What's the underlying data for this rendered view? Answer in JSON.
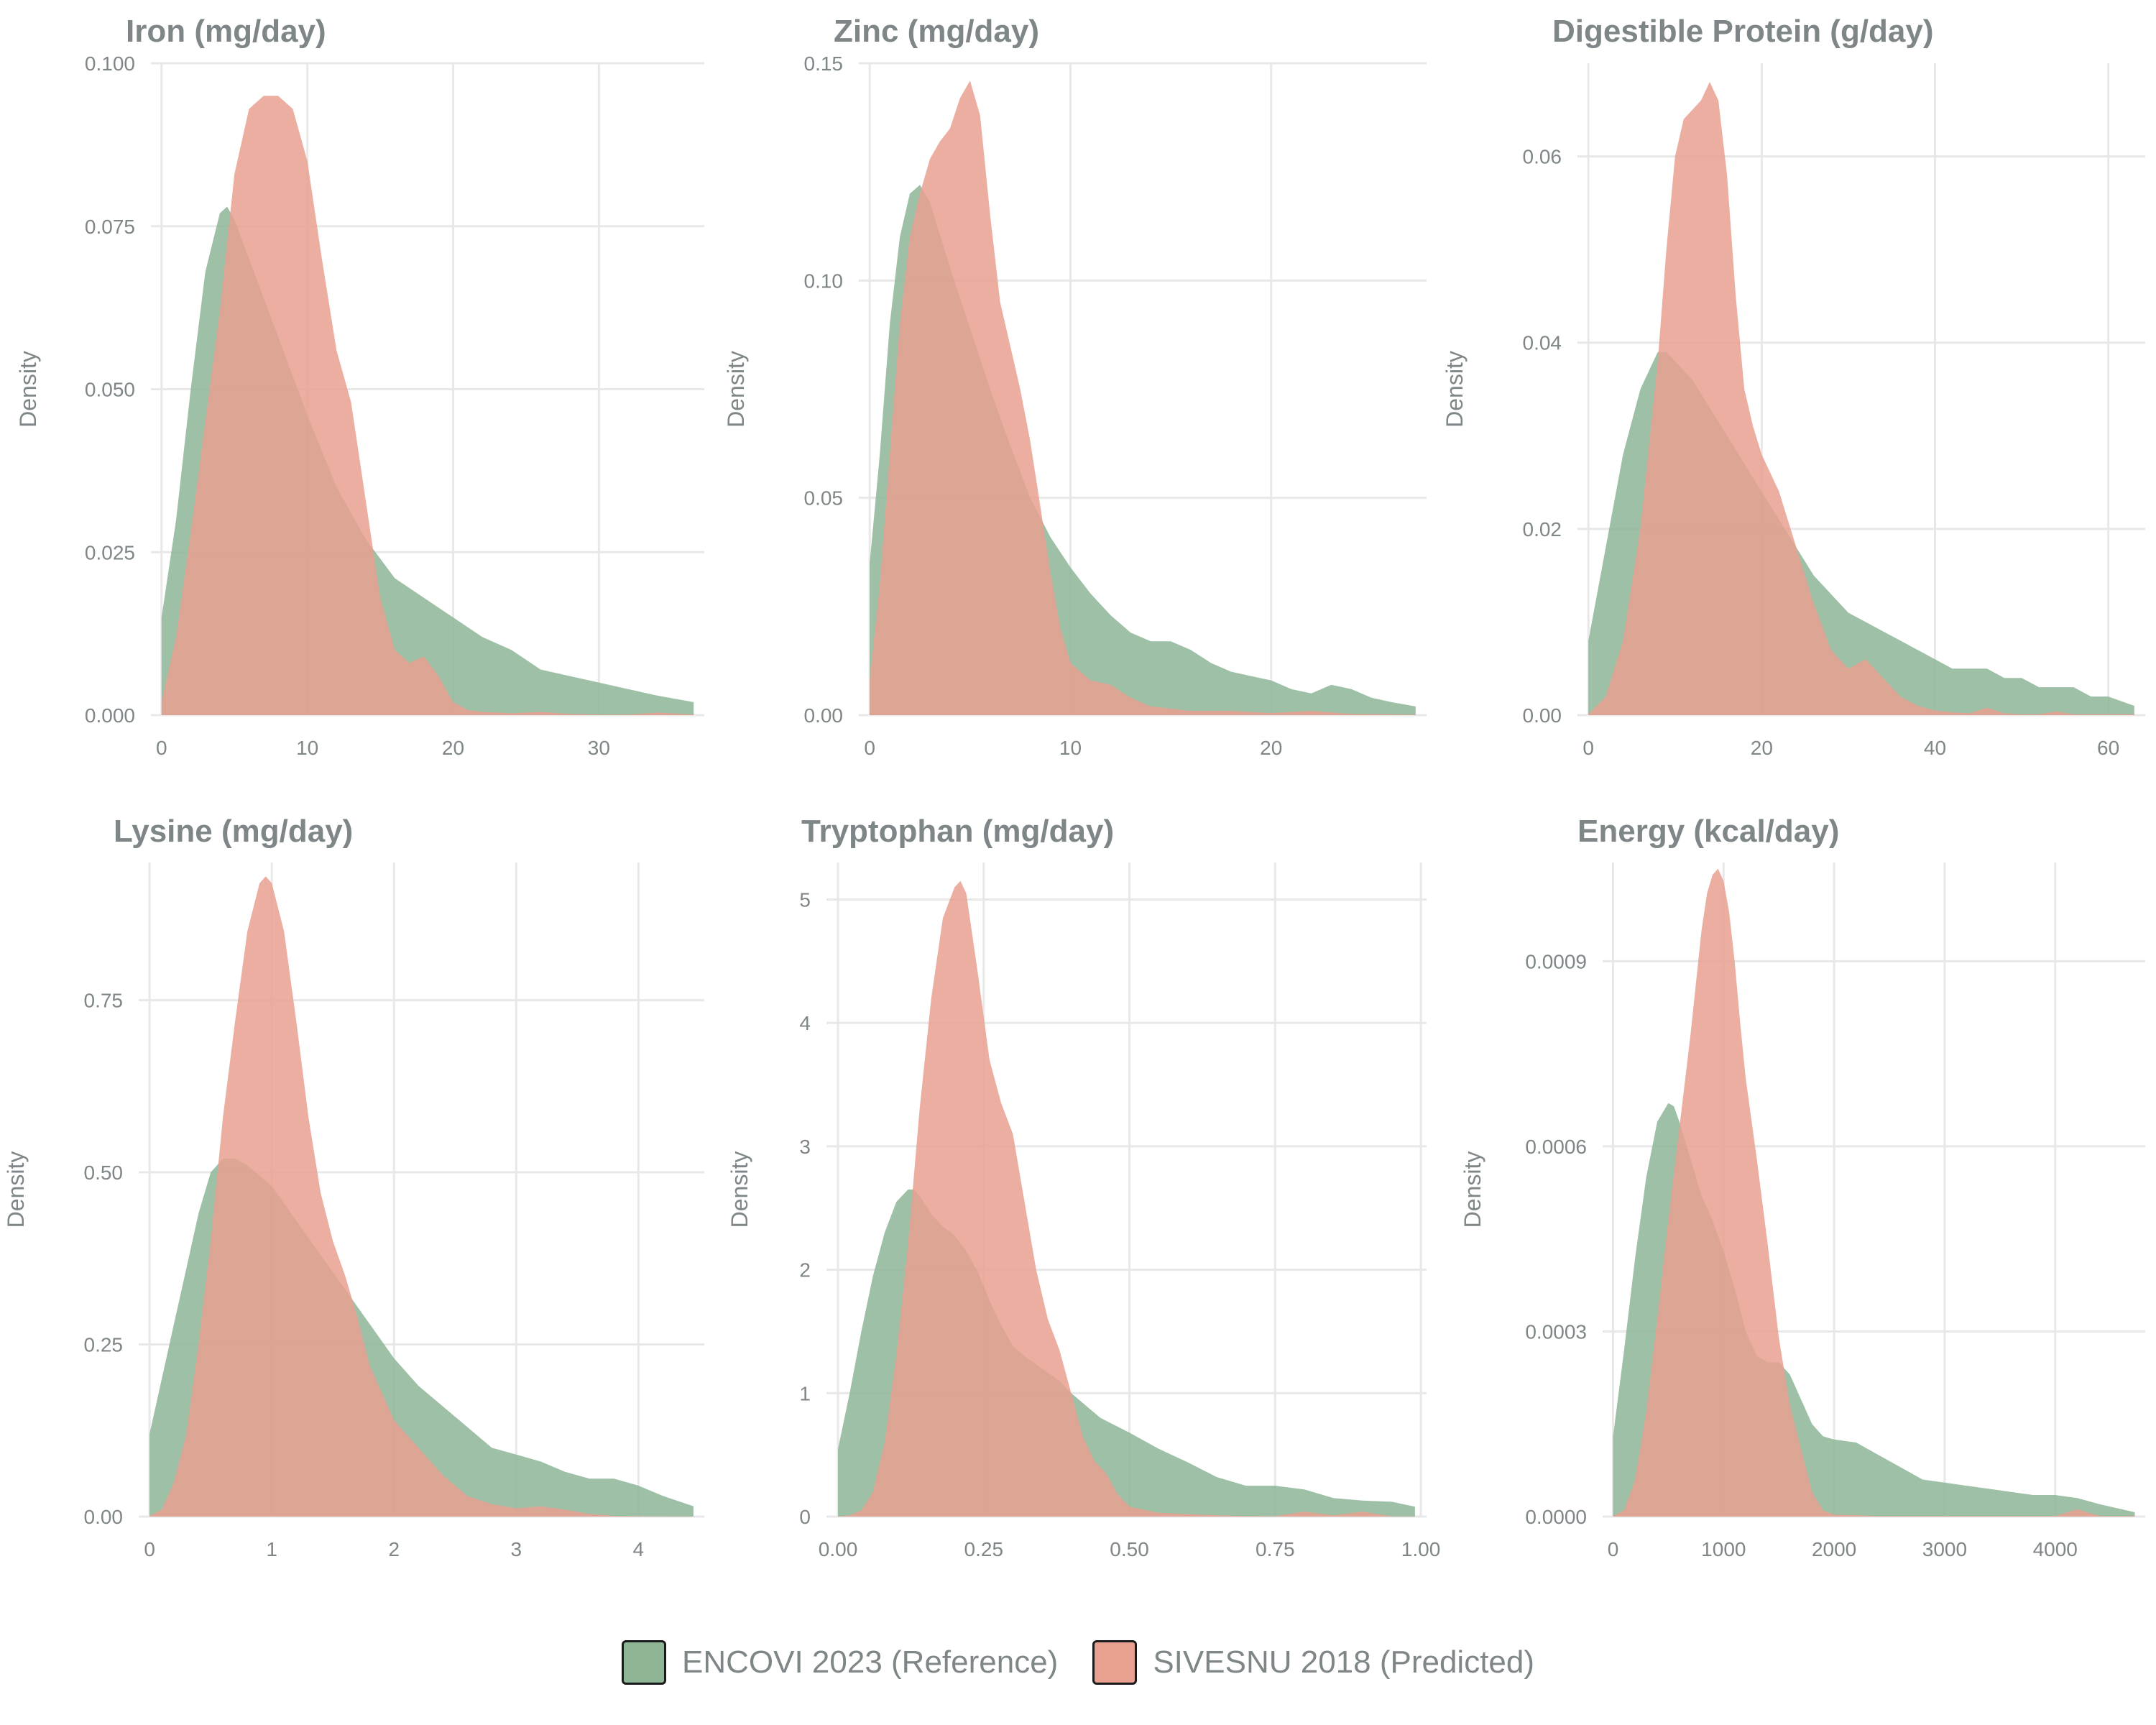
{
  "legend": {
    "items": [
      {
        "label": "ENCOVI 2023 (Reference)",
        "color": "#8db596"
      },
      {
        "label": "SIVESNU 2018 (Predicted)",
        "color": "#e8a090"
      }
    ]
  },
  "chart_data": [
    {
      "type": "area",
      "title": "Iron (mg/day)",
      "xlabel": "",
      "ylabel": "Density",
      "xlim": [
        0,
        36.5
      ],
      "ylim": [
        0,
        0.1
      ],
      "xticks": [
        0,
        10,
        20,
        30
      ],
      "xtick_labels": [
        "0",
        "10",
        "20",
        "30"
      ],
      "yticks": [
        0,
        0.025,
        0.05,
        0.075,
        0.1
      ],
      "ytick_labels": [
        "0.000",
        "0.025",
        "0.050",
        "0.075",
        "0.100"
      ],
      "series": [
        {
          "name": "ENCOVI 2023 (Reference)",
          "color": "#8db596",
          "x": [
            0,
            1,
            2,
            3,
            4,
            4.5,
            5,
            6,
            8,
            10,
            12,
            14,
            15,
            16,
            18,
            20,
            22,
            24,
            26,
            28,
            30,
            32,
            34,
            36.5
          ],
          "y": [
            0.015,
            0.03,
            0.05,
            0.068,
            0.077,
            0.078,
            0.076,
            0.07,
            0.058,
            0.046,
            0.035,
            0.027,
            0.024,
            0.021,
            0.018,
            0.015,
            0.012,
            0.01,
            0.007,
            0.006,
            0.005,
            0.004,
            0.003,
            0.002
          ]
        },
        {
          "name": "SIVESNU 2018 (Predicted)",
          "color": "#e8a090",
          "x": [
            0,
            1,
            2,
            3,
            4,
            5,
            6,
            7,
            8,
            9,
            10,
            11,
            12,
            13,
            14,
            15,
            16,
            17,
            18,
            19,
            20,
            21,
            22,
            24,
            26,
            28,
            30,
            32,
            34,
            36.5
          ],
          "y": [
            0.002,
            0.012,
            0.028,
            0.045,
            0.062,
            0.083,
            0.093,
            0.095,
            0.095,
            0.093,
            0.085,
            0.07,
            0.056,
            0.048,
            0.033,
            0.018,
            0.01,
            0.008,
            0.009,
            0.006,
            0.002,
            0.0008,
            0.0005,
            0.0003,
            0.0005,
            0.0002,
            0.0001,
            0.0001,
            0.0004,
            0.0001
          ]
        }
      ]
    },
    {
      "type": "area",
      "title": "Zinc (mg/day)",
      "xlabel": "",
      "ylabel": "Density",
      "xlim": [
        0,
        27.2
      ],
      "ylim": [
        0,
        0.15
      ],
      "xticks": [
        0,
        10,
        20
      ],
      "xtick_labels": [
        "0",
        "10",
        "20"
      ],
      "yticks": [
        0,
        0.05,
        0.1,
        0.15
      ],
      "ytick_labels": [
        "0.00",
        "0.05",
        "0.10",
        "0.15"
      ],
      "series": [
        {
          "name": "ENCOVI 2023 (Reference)",
          "color": "#8db596",
          "x": [
            0,
            0.5,
            1,
            1.5,
            2,
            2.5,
            3,
            4,
            5,
            6,
            7,
            8,
            9,
            10,
            11,
            12,
            13,
            14,
            15,
            16,
            17,
            18,
            19,
            20,
            21,
            22,
            23,
            24,
            25,
            26,
            27.2
          ],
          "y": [
            0.035,
            0.06,
            0.09,
            0.11,
            0.12,
            0.122,
            0.118,
            0.103,
            0.089,
            0.075,
            0.062,
            0.05,
            0.041,
            0.034,
            0.028,
            0.023,
            0.019,
            0.017,
            0.017,
            0.015,
            0.012,
            0.01,
            0.009,
            0.008,
            0.006,
            0.005,
            0.007,
            0.006,
            0.004,
            0.003,
            0.002
          ]
        },
        {
          "name": "SIVESNU 2018 (Predicted)",
          "color": "#e8a090",
          "x": [
            0,
            0.5,
            1,
            1.5,
            2,
            2.5,
            3,
            3.5,
            4,
            4.5,
            5,
            5.5,
            6,
            6.5,
            7,
            7.5,
            8,
            8.5,
            9,
            9.5,
            10,
            11,
            12,
            13,
            14,
            16,
            18,
            20,
            22,
            24,
            27.2
          ],
          "y": [
            0.008,
            0.03,
            0.06,
            0.09,
            0.11,
            0.12,
            0.128,
            0.132,
            0.135,
            0.142,
            0.146,
            0.138,
            0.115,
            0.095,
            0.085,
            0.075,
            0.063,
            0.048,
            0.033,
            0.02,
            0.012,
            0.008,
            0.007,
            0.004,
            0.002,
            0.001,
            0.001,
            0.0005,
            0.001,
            0.0003,
            0.0001
          ]
        }
      ]
    },
    {
      "type": "area",
      "title": "Digestible Protein (g/day)",
      "xlabel": "",
      "ylabel": "Density",
      "xlim": [
        0,
        63
      ],
      "ylim": [
        0,
        0.07
      ],
      "xticks": [
        0,
        20,
        40,
        60
      ],
      "xtick_labels": [
        "0",
        "20",
        "40",
        "60"
      ],
      "yticks": [
        0,
        0.02,
        0.04,
        0.06
      ],
      "ytick_labels": [
        "0.00",
        "0.02",
        "0.04",
        "0.06"
      ],
      "series": [
        {
          "name": "ENCOVI 2023 (Reference)",
          "color": "#8db596",
          "x": [
            0,
            2,
            4,
            6,
            8,
            9,
            10,
            12,
            14,
            16,
            18,
            20,
            22,
            24,
            26,
            28,
            30,
            32,
            34,
            36,
            38,
            40,
            42,
            44,
            46,
            48,
            50,
            52,
            54,
            56,
            58,
            60,
            63
          ],
          "y": [
            0.008,
            0.018,
            0.028,
            0.035,
            0.039,
            0.039,
            0.038,
            0.036,
            0.033,
            0.03,
            0.027,
            0.024,
            0.021,
            0.018,
            0.015,
            0.013,
            0.011,
            0.01,
            0.009,
            0.008,
            0.007,
            0.006,
            0.005,
            0.005,
            0.005,
            0.004,
            0.004,
            0.003,
            0.003,
            0.003,
            0.002,
            0.002,
            0.001
          ]
        },
        {
          "name": "SIVESNU 2018 (Predicted)",
          "color": "#e8a090",
          "x": [
            0,
            2,
            4,
            6,
            8,
            9,
            10,
            11,
            12,
            13,
            14,
            15,
            16,
            17,
            18,
            19,
            20,
            22,
            24,
            26,
            28,
            30,
            32,
            34,
            36,
            38,
            40,
            42,
            44,
            46,
            48,
            50,
            52,
            54,
            56,
            58,
            60,
            63
          ],
          "y": [
            0.0001,
            0.002,
            0.008,
            0.02,
            0.038,
            0.05,
            0.06,
            0.064,
            0.065,
            0.066,
            0.068,
            0.066,
            0.058,
            0.045,
            0.035,
            0.031,
            0.028,
            0.024,
            0.018,
            0.012,
            0.007,
            0.005,
            0.006,
            0.004,
            0.002,
            0.001,
            0.0005,
            0.0003,
            0.0002,
            0.0008,
            0.0002,
            0.0001,
            0.0001,
            0.0004,
            0.0001,
            0.0001,
            0.0001,
            0.0001
          ]
        }
      ]
    },
    {
      "type": "area",
      "title": "Lysine (mg/day)",
      "xlabel": "",
      "ylabel": "Density",
      "xlim": [
        0,
        4.45
      ],
      "ylim": [
        0,
        0.95
      ],
      "xticks": [
        0,
        1,
        2,
        3,
        4
      ],
      "xtick_labels": [
        "0",
        "1",
        "2",
        "3",
        "4"
      ],
      "yticks": [
        0,
        0.25,
        0.5,
        0.75
      ],
      "ytick_labels": [
        "0.00",
        "0.25",
        "0.50",
        "0.75"
      ],
      "series": [
        {
          "name": "ENCOVI 2023 (Reference)",
          "color": "#8db596",
          "x": [
            0,
            0.1,
            0.2,
            0.3,
            0.4,
            0.5,
            0.6,
            0.7,
            0.8,
            1.0,
            1.2,
            1.4,
            1.6,
            1.8,
            2.0,
            2.2,
            2.4,
            2.6,
            2.8,
            3.0,
            3.2,
            3.4,
            3.6,
            3.8,
            4.0,
            4.2,
            4.45
          ],
          "y": [
            0.12,
            0.2,
            0.28,
            0.36,
            0.44,
            0.5,
            0.52,
            0.52,
            0.51,
            0.48,
            0.43,
            0.38,
            0.33,
            0.28,
            0.23,
            0.19,
            0.16,
            0.13,
            0.1,
            0.09,
            0.08,
            0.065,
            0.055,
            0.055,
            0.045,
            0.03,
            0.015
          ]
        },
        {
          "name": "SIVESNU 2018 (Predicted)",
          "color": "#e8a090",
          "x": [
            0,
            0.1,
            0.2,
            0.3,
            0.4,
            0.5,
            0.6,
            0.7,
            0.8,
            0.9,
            0.95,
            1.0,
            1.1,
            1.2,
            1.3,
            1.4,
            1.5,
            1.6,
            1.7,
            1.8,
            2.0,
            2.2,
            2.4,
            2.6,
            2.8,
            3.0,
            3.2,
            3.4,
            3.6,
            3.8,
            4.0,
            4.2,
            4.45
          ],
          "y": [
            0.001,
            0.01,
            0.05,
            0.12,
            0.25,
            0.4,
            0.58,
            0.72,
            0.85,
            0.92,
            0.93,
            0.92,
            0.85,
            0.72,
            0.58,
            0.47,
            0.4,
            0.35,
            0.29,
            0.22,
            0.14,
            0.1,
            0.06,
            0.03,
            0.018,
            0.012,
            0.015,
            0.01,
            0.004,
            0.001,
            0.0005,
            0.0003,
            0.0003
          ]
        }
      ]
    },
    {
      "type": "area",
      "title": "Tryptophan (mg/day)",
      "xlabel": "",
      "ylabel": "Density",
      "xlim": [
        0,
        0.99
      ],
      "ylim": [
        0,
        5.3
      ],
      "xticks": [
        0,
        0.25,
        0.5,
        0.75,
        1.0
      ],
      "xtick_labels": [
        "0.00",
        "0.25",
        "0.50",
        "0.75",
        "1.00"
      ],
      "yticks": [
        0,
        1,
        2,
        3,
        4,
        5
      ],
      "ytick_labels": [
        "0",
        "1",
        "2",
        "3",
        "4",
        "5"
      ],
      "series": [
        {
          "name": "ENCOVI 2023 (Reference)",
          "color": "#8db596",
          "x": [
            0,
            0.02,
            0.04,
            0.06,
            0.08,
            0.1,
            0.12,
            0.13,
            0.14,
            0.16,
            0.18,
            0.2,
            0.22,
            0.24,
            0.26,
            0.28,
            0.3,
            0.32,
            0.35,
            0.38,
            0.4,
            0.45,
            0.5,
            0.55,
            0.6,
            0.65,
            0.7,
            0.75,
            0.8,
            0.85,
            0.9,
            0.95,
            0.99
          ],
          "y": [
            0.55,
            1.0,
            1.5,
            1.95,
            2.3,
            2.55,
            2.65,
            2.65,
            2.6,
            2.45,
            2.35,
            2.28,
            2.15,
            1.98,
            1.75,
            1.55,
            1.38,
            1.3,
            1.2,
            1.1,
            1.0,
            0.8,
            0.68,
            0.55,
            0.44,
            0.32,
            0.25,
            0.25,
            0.22,
            0.15,
            0.13,
            0.12,
            0.08
          ]
        },
        {
          "name": "SIVESNU 2018 (Predicted)",
          "color": "#e8a090",
          "x": [
            0,
            0.02,
            0.04,
            0.06,
            0.08,
            0.1,
            0.12,
            0.14,
            0.16,
            0.18,
            0.2,
            0.21,
            0.22,
            0.24,
            0.26,
            0.28,
            0.3,
            0.32,
            0.34,
            0.36,
            0.38,
            0.4,
            0.42,
            0.44,
            0.46,
            0.48,
            0.5,
            0.55,
            0.6,
            0.65,
            0.7,
            0.75,
            0.8,
            0.85,
            0.9,
            0.95,
            0.99
          ],
          "y": [
            0.001,
            0.01,
            0.05,
            0.2,
            0.6,
            1.3,
            2.2,
            3.3,
            4.2,
            4.85,
            5.1,
            5.15,
            5.05,
            4.4,
            3.7,
            3.35,
            3.1,
            2.55,
            2.0,
            1.6,
            1.35,
            1.0,
            0.65,
            0.45,
            0.35,
            0.18,
            0.08,
            0.03,
            0.02,
            0.01,
            0.005,
            0.003,
            0.04,
            0.01,
            0.04,
            0.001,
            0.001
          ]
        }
      ]
    },
    {
      "type": "area",
      "title": "Energy (kcal/day)",
      "xlabel": "",
      "ylabel": "Density",
      "xlim": [
        0,
        4720
      ],
      "ylim": [
        0,
        0.00106
      ],
      "xticks": [
        0,
        1000,
        2000,
        3000,
        4000
      ],
      "xtick_labels": [
        "0",
        "1000",
        "2000",
        "3000",
        "4000"
      ],
      "yticks": [
        0,
        0.0003,
        0.0006,
        0.0009
      ],
      "ytick_labels": [
        "0.0000",
        "0.0003",
        "0.0006",
        "0.0009"
      ],
      "series": [
        {
          "name": "ENCOVI 2023 (Reference)",
          "color": "#8db596",
          "x": [
            0,
            100,
            200,
            300,
            400,
            500,
            550,
            600,
            700,
            800,
            900,
            1000,
            1100,
            1200,
            1300,
            1400,
            1500,
            1600,
            1700,
            1800,
            1900,
            2000,
            2200,
            2400,
            2600,
            2800,
            3000,
            3200,
            3400,
            3600,
            3800,
            4000,
            4200,
            4400,
            4720
          ],
          "y": [
            0.00013,
            0.00027,
            0.00042,
            0.00055,
            0.00064,
            0.00067,
            0.000665,
            0.00064,
            0.00058,
            0.00052,
            0.00048,
            0.00043,
            0.00037,
            0.0003,
            0.00026,
            0.00025,
            0.00025,
            0.00023,
            0.00019,
            0.00015,
            0.00013,
            0.000125,
            0.00012,
            0.0001,
            8e-05,
            6e-05,
            5.5e-05,
            5e-05,
            4.5e-05,
            4e-05,
            3.5e-05,
            3.5e-05,
            3e-05,
            2e-05,
            7e-06
          ]
        },
        {
          "name": "SIVESNU 2018 (Predicted)",
          "color": "#e8a090",
          "x": [
            0,
            100,
            200,
            300,
            400,
            500,
            600,
            700,
            800,
            850,
            900,
            950,
            1000,
            1050,
            1100,
            1150,
            1200,
            1300,
            1400,
            1500,
            1600,
            1700,
            1800,
            1900,
            2000,
            2200,
            2400,
            2600,
            2800,
            3000,
            3200,
            3400,
            3600,
            3800,
            4000,
            4200,
            4400,
            4720
          ],
          "y": [
            1e-06,
            1e-05,
            6e-05,
            0.00017,
            0.00032,
            0.00048,
            0.00063,
            0.00078,
            0.00095,
            0.00101,
            0.00104,
            0.00105,
            0.00103,
            0.00098,
            0.0009,
            0.0008,
            0.00071,
            0.00058,
            0.00044,
            0.00029,
            0.00018,
            0.00011,
            4e-05,
            1e-05,
            3e-06,
            2e-06,
            1e-06,
            1e-06,
            1e-06,
            1e-06,
            1e-06,
            1e-06,
            1e-06,
            1e-06,
            1e-06,
            1.2e-05,
            1e-06,
            1e-06
          ]
        }
      ]
    }
  ]
}
